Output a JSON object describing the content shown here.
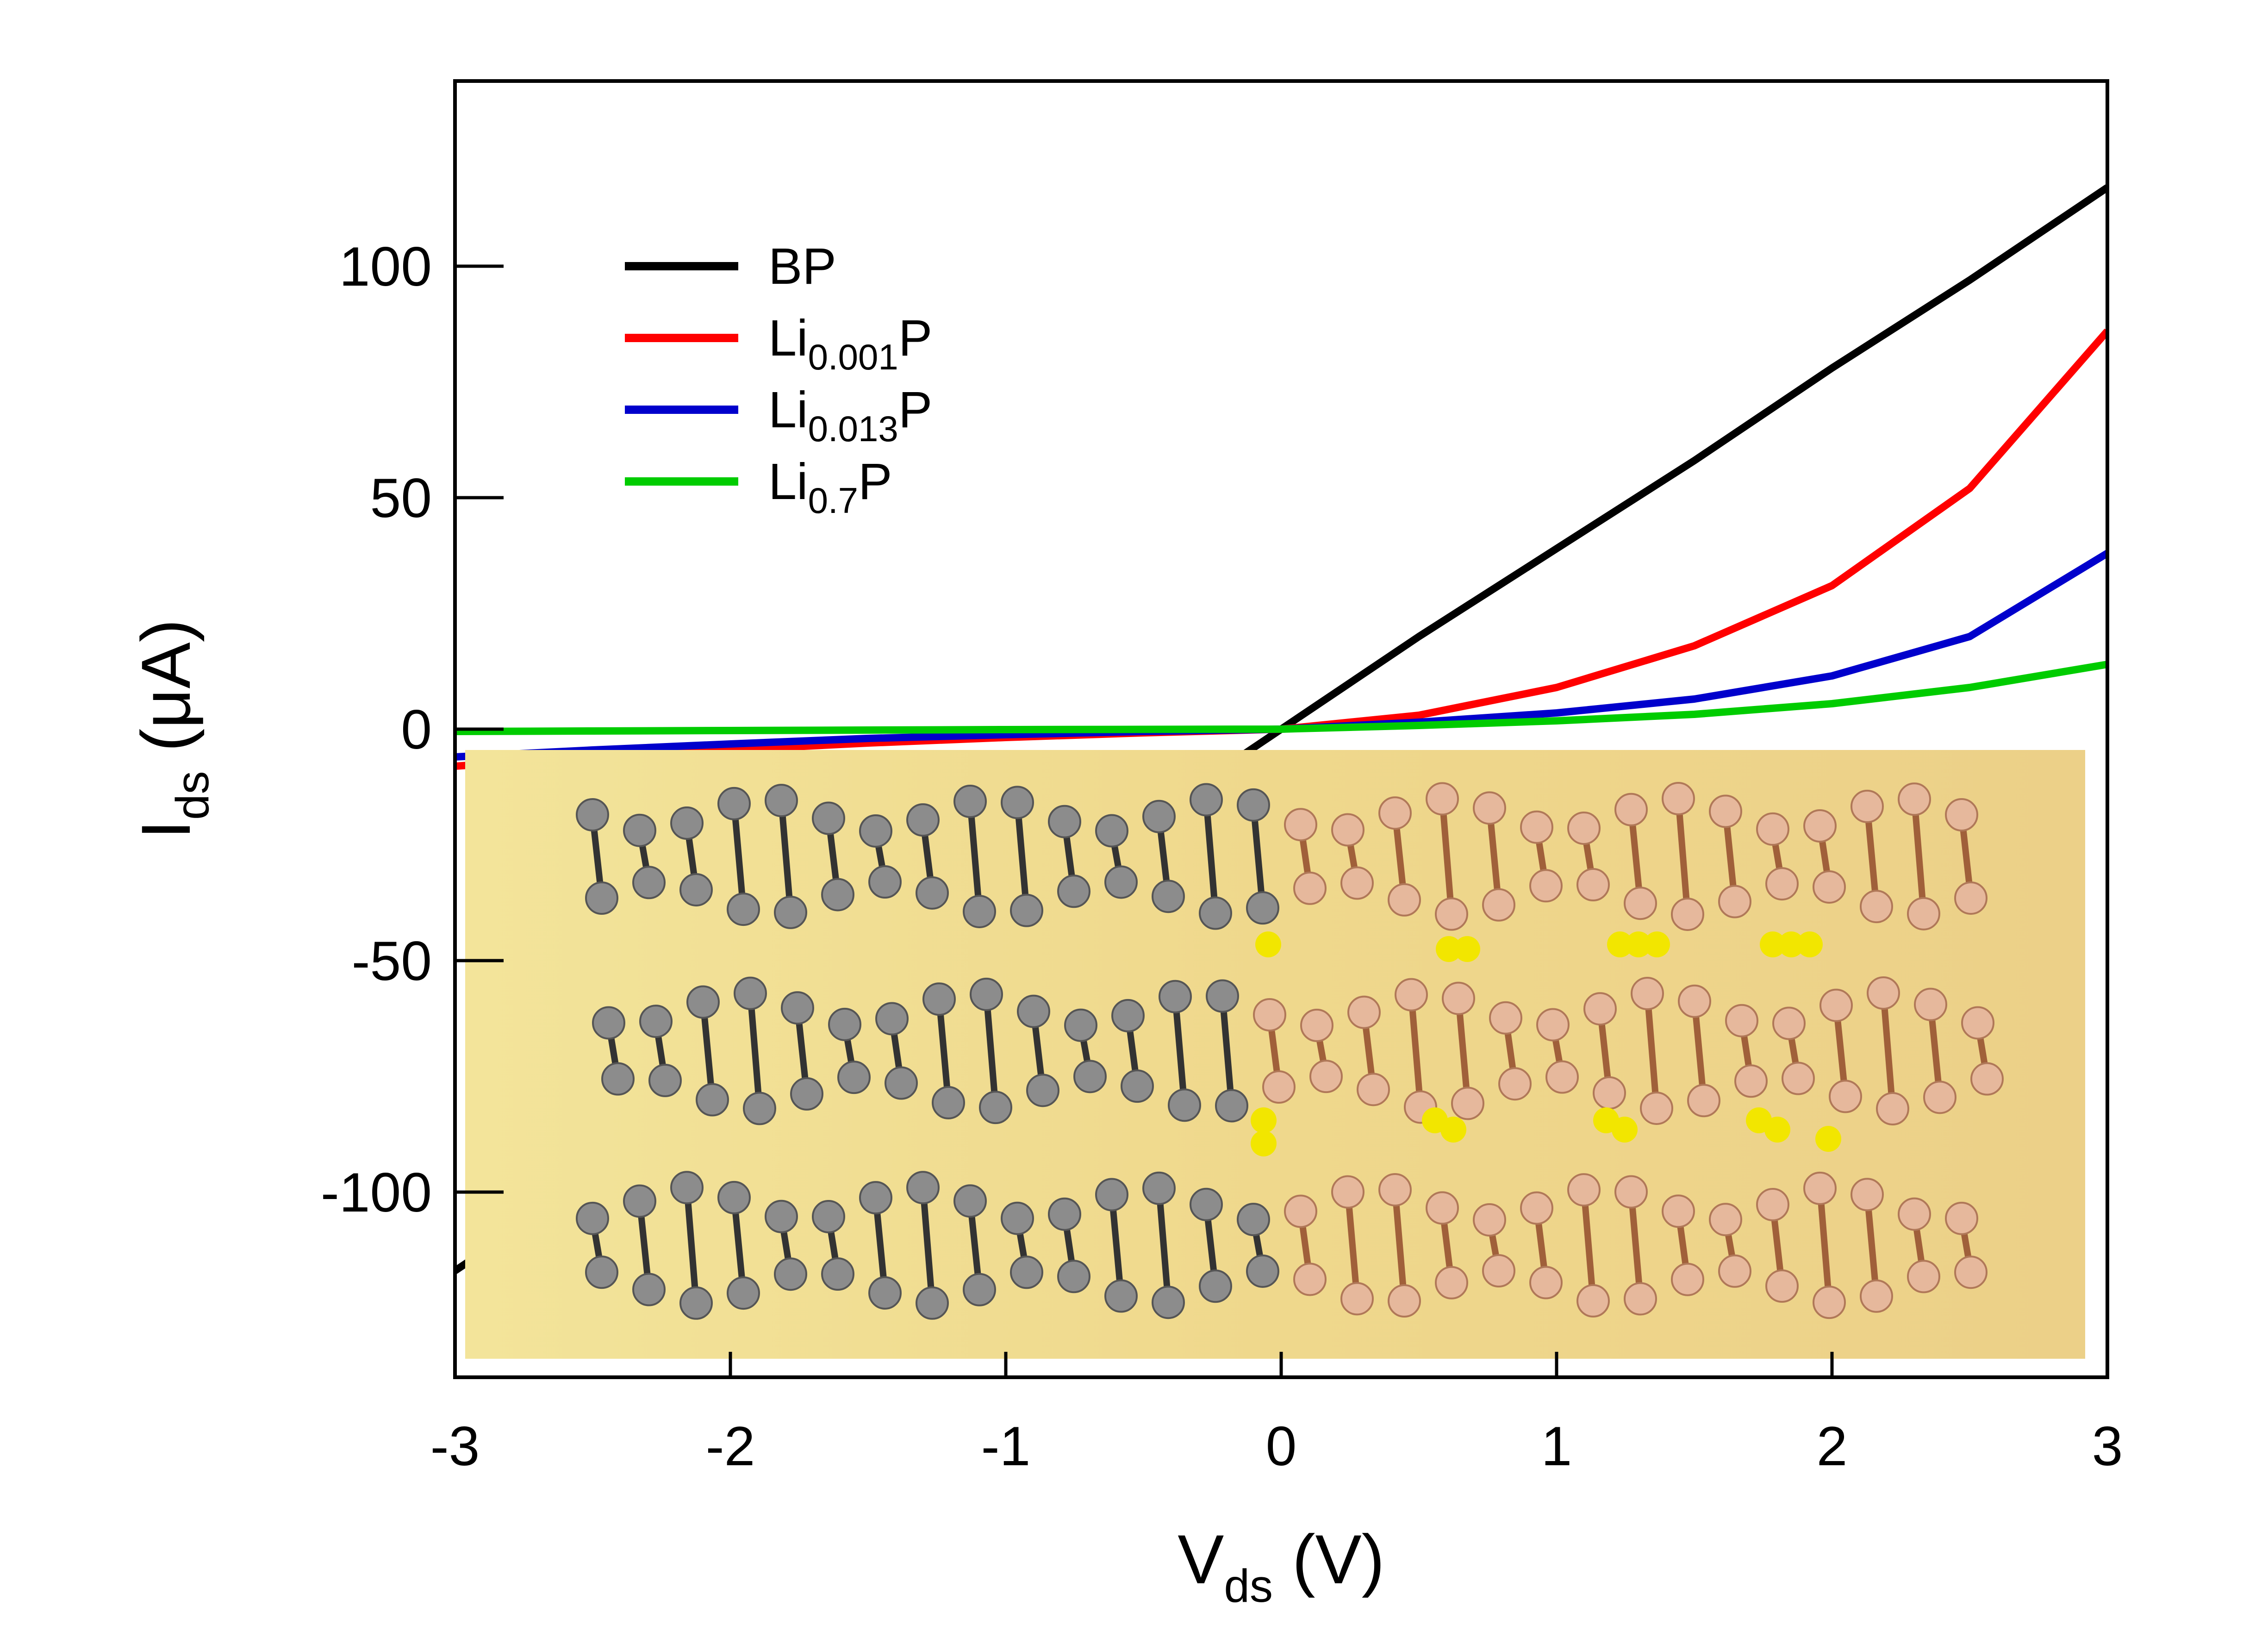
{
  "chart_data": {
    "type": "line",
    "title": "",
    "xlabel": {
      "main": "V",
      "sub": "ds",
      "unit": " (V)"
    },
    "ylabel": {
      "main": "I",
      "sub": "ds",
      "unit": " (μA)"
    },
    "xlim": [
      -3,
      3
    ],
    "ylim": [
      -140,
      140
    ],
    "xticks": [
      -3,
      -2,
      -1,
      0,
      1,
      2,
      3
    ],
    "xtick_labels": [
      "-3",
      "-2",
      "-1",
      "0",
      "1",
      "2",
      "3"
    ],
    "yticks": [
      -100,
      -50,
      0,
      50,
      100
    ],
    "ytick_labels": [
      "-100",
      "-50",
      "0",
      "50",
      "100"
    ],
    "grid": false,
    "legend": "top-left",
    "x": [
      -3,
      -2.5,
      -2,
      -1.5,
      -1,
      -0.5,
      0,
      0.5,
      1,
      1.5,
      2,
      2.5,
      3
    ],
    "series": [
      {
        "name": "BP",
        "color": "#000000",
        "name_main": "BP",
        "name_sub": "",
        "name_tail": "",
        "values": [
          -117,
          -97,
          -78,
          -58,
          -39,
          -20,
          0,
          20,
          39,
          58,
          78,
          97,
          117
        ]
      },
      {
        "name": "Li0.001P",
        "color": "#ff0000",
        "name_main": "Li",
        "name_sub": "0.001",
        "name_tail": "P",
        "values": [
          -8,
          -6,
          -4.5,
          -3,
          -1.8,
          -0.8,
          0,
          3,
          9,
          18,
          31,
          52,
          86
        ]
      },
      {
        "name": "Li0.013P",
        "color": "#0000cc",
        "name_main": "Li",
        "name_sub": "0.013",
        "name_tail": "P",
        "values": [
          -6,
          -4.5,
          -3.2,
          -2,
          -1.2,
          -0.5,
          0,
          1.5,
          3.5,
          6.5,
          11.5,
          20,
          38
        ]
      },
      {
        "name": "Li0.7P",
        "color": "#00cc00",
        "name_main": "Li",
        "name_sub": "0.7",
        "name_tail": "P",
        "values": [
          -0.5,
          -0.4,
          -0.3,
          -0.2,
          -0.1,
          -0.05,
          0,
          0.8,
          1.8,
          3.2,
          5.5,
          9,
          14
        ]
      }
    ],
    "inset": {
      "type": "crystal-structure-illustration",
      "atom_colors": [
        "#8c8c8c",
        "#e6b89c",
        "#f2e600"
      ]
    }
  }
}
